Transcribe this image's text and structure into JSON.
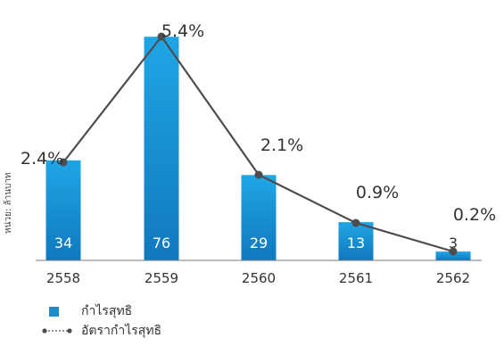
{
  "chart_data": {
    "type": "bar",
    "categories": [
      "2558",
      "2559",
      "2560",
      "2561",
      "2562"
    ],
    "series": [
      {
        "name": "กำไรสุทธิ",
        "type": "bar",
        "values": [
          34,
          76,
          29,
          13,
          3
        ],
        "labels": [
          "34",
          "76",
          "29",
          "13",
          "3"
        ],
        "color": "#1a8fd0"
      },
      {
        "name": "อัตรากำไรสุทธิ",
        "type": "line",
        "values": [
          2.4,
          5.4,
          2.1,
          0.9,
          0.2
        ],
        "labels": [
          "2.4%",
          "5.4%",
          "2.1%",
          "0.9%",
          "0.2%"
        ],
        "color": "#4d4d4d"
      }
    ],
    "ylabel": "หน่วย: ล้านบาท",
    "grid": false,
    "legend_position": "bottom-left"
  },
  "colors": {
    "bar_top": "#1fa6e6",
    "bar_bottom": "#1178bf",
    "line": "#4d4d4d",
    "axis": "#7a7a7a"
  }
}
